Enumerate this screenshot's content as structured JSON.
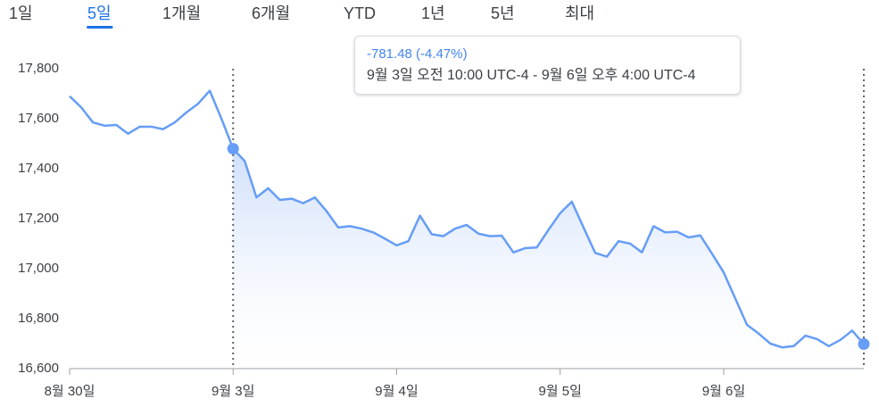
{
  "tabs": [
    "1일",
    "5일",
    "1개월",
    "6개월",
    "YTD",
    "1년",
    "5년",
    "최대"
  ],
  "selected_tab": 1,
  "chart_data": {
    "type": "line",
    "annotations": [
      "-781.48 (-4.47%)",
      "9월 3일 오전 10:00 UTC-4 - 9월 6일 오후 4:00 UTC-4"
    ],
    "categories": [
      "8월 30일",
      null,
      null,
      null,
      null,
      null,
      null,
      null,
      null,
      null,
      null,
      null,
      null,
      null,
      "9월 3일",
      null,
      null,
      null,
      null,
      null,
      null,
      null,
      null,
      null,
      null,
      null,
      null,
      null,
      "9월 4일",
      null,
      null,
      null,
      null,
      null,
      null,
      null,
      null,
      null,
      null,
      null,
      null,
      null,
      "9월 5일",
      null,
      null,
      null,
      null,
      null,
      null,
      null,
      null,
      null,
      null,
      null,
      null,
      null,
      "9월 6일",
      null,
      null,
      null,
      null,
      null,
      null,
      null,
      null,
      null,
      null,
      null,
      null
    ],
    "values": [
      17690,
      17645,
      17585,
      17572,
      17575,
      17540,
      17568,
      17568,
      17558,
      17585,
      17625,
      17660,
      17712,
      17600,
      17480,
      17430,
      17285,
      17322,
      17275,
      17280,
      17262,
      17285,
      17230,
      17165,
      17170,
      17160,
      17145,
      17120,
      17093,
      17110,
      17212,
      17138,
      17130,
      17160,
      17175,
      17140,
      17130,
      17132,
      17065,
      17082,
      17085,
      17155,
      17222,
      17268,
      17165,
      17063,
      17048,
      17110,
      17100,
      17065,
      17170,
      17145,
      17148,
      17125,
      17133,
      17060,
      16985,
      16880,
      16775,
      16740,
      16700,
      16685,
      16690,
      16732,
      16718,
      16690,
      16715,
      16752,
      16698
    ],
    "color": "#669df6",
    "selection": [
      14,
      68
    ],
    "ylim": [
      16600,
      17800
    ],
    "yticks": [
      {
        "value": 16600,
        "label": "16,600"
      },
      {
        "value": 16800,
        "label": "16,800"
      },
      {
        "value": 17000,
        "label": "17,000"
      },
      {
        "value": 17200,
        "label": "17,200"
      },
      {
        "value": 17400,
        "label": "17,400"
      },
      {
        "value": 17600,
        "label": "17,600"
      },
      {
        "value": 17800,
        "label": "17,800"
      }
    ],
    "grid": false
  }
}
